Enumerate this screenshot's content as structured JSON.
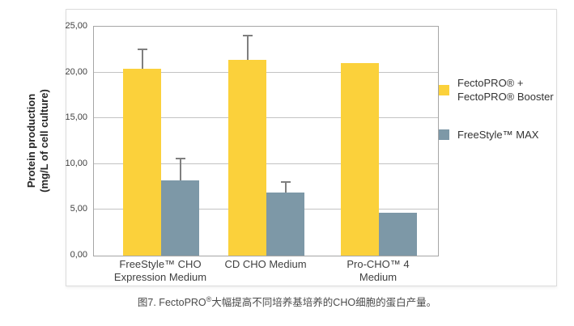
{
  "figure": {
    "caption_prefix": "图7. FectoPRO",
    "caption_sup": "®",
    "caption_suffix": "大幅提高不同培养基培养的CHO细胞的蛋白产量。"
  },
  "chart_data": {
    "type": "bar",
    "title": "",
    "ylabel_lines": [
      "Protein production",
      "(mg/L of cell culture)"
    ],
    "ylim": [
      0,
      25
    ],
    "grid": true,
    "legend_position": "right",
    "y_ticks": [
      {
        "label": "0,00",
        "value": 0
      },
      {
        "label": "5,00",
        "value": 5
      },
      {
        "label": "10,00",
        "value": 10
      },
      {
        "label": "15,00",
        "value": 15
      },
      {
        "label": "20,00",
        "value": 20
      },
      {
        "label": "25,00",
        "value": 25
      }
    ],
    "categories": [
      {
        "key": "freestyle-cho-expression-medium",
        "lines": [
          "FreeStyle™ CHO",
          "Expression  Medium"
        ]
      },
      {
        "key": "cd-cho-medium",
        "lines": [
          "CD CHO Medium"
        ]
      },
      {
        "key": "pro-cho-4-medium",
        "lines": [
          "Pro-CHO™ 4",
          "Medium"
        ]
      }
    ],
    "series": [
      {
        "key": "fectopro-booster",
        "name": "FectoPRO® + FectoPRO® Booster",
        "legend_lines": [
          "FectoPRO® +",
          "FectoPRO® Booster"
        ],
        "color": "#FBD13B",
        "values": [
          20.4,
          21.4,
          21.0
        ],
        "error_plus": [
          2.2,
          2.7,
          0
        ]
      },
      {
        "key": "freestyle-max",
        "name": "FreeStyle™ MAX",
        "legend_lines": [
          "FreeStyle™ MAX"
        ],
        "color": "#7D98A7",
        "values": [
          8.2,
          6.9,
          4.7
        ],
        "error_plus": [
          2.5,
          1.2,
          0
        ]
      }
    ],
    "error_bar_color": "#7f7f7f"
  }
}
